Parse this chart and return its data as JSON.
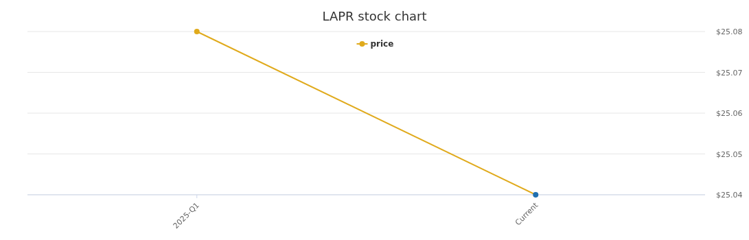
{
  "chart_data": {
    "type": "line",
    "title": "LAPR stock chart",
    "categories": [
      "2025-Q1",
      "Current"
    ],
    "series": [
      {
        "name": "price",
        "color": "#e0aa1c",
        "colors": [
          "#e0aa1c",
          "#1f6fb0"
        ],
        "values": [
          25.08,
          25.04
        ]
      }
    ],
    "ylim": [
      25.04,
      25.08
    ],
    "yticks": [
      {
        "value": 25.04,
        "label": "$25.04"
      },
      {
        "value": 25.05,
        "label": "$25.05"
      },
      {
        "value": 25.06,
        "label": "$25.06"
      },
      {
        "value": 25.07,
        "label": "$25.07"
      },
      {
        "value": 25.08,
        "label": "$25.08"
      }
    ],
    "grid": "y",
    "legend": "top",
    "marker": "circle"
  }
}
